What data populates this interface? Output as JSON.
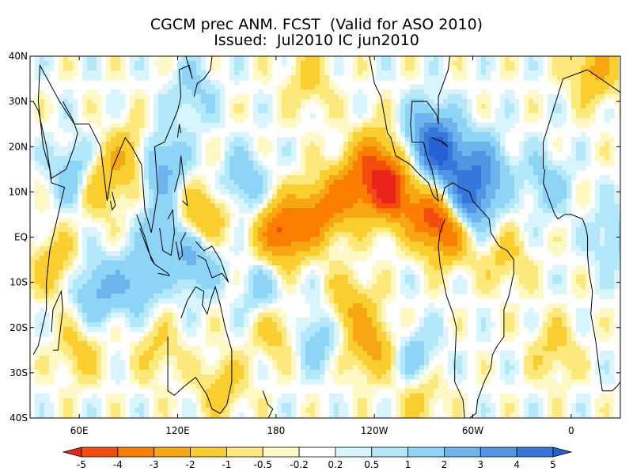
{
  "title": {
    "line1": "CGCM prec ANM. FCST  (Valid for ASO 2010)",
    "line2": "Issued:  Jul2010 IC jun2010"
  },
  "chart_data": {
    "type": "heatmap",
    "variable": "precipitation anomaly forecast",
    "lon_range": [
      30,
      390
    ],
    "lat_range": [
      -40,
      40
    ],
    "y_ticks": [
      {
        "lat": 40,
        "label": "40N"
      },
      {
        "lat": 30,
        "label": "30N"
      },
      {
        "lat": 20,
        "label": "20N"
      },
      {
        "lat": 10,
        "label": "10N"
      },
      {
        "lat": 0,
        "label": "EQ"
      },
      {
        "lat": -10,
        "label": "10S"
      },
      {
        "lat": -20,
        "label": "20S"
      },
      {
        "lat": -30,
        "label": "30S"
      },
      {
        "lat": -40,
        "label": "40S"
      }
    ],
    "x_ticks": [
      {
        "lon": 60,
        "label": "60E"
      },
      {
        "lon": 120,
        "label": "120E"
      },
      {
        "lon": 180,
        "label": "180"
      },
      {
        "lon": 240,
        "label": "120W"
      },
      {
        "lon": 300,
        "label": "60W"
      },
      {
        "lon": 360,
        "label": "0"
      }
    ],
    "colorbar": {
      "levels": [
        "-5",
        "-4",
        "-3",
        "-2",
        "-1",
        "-0.5",
        "-0.2",
        "0.2",
        "0.5",
        "1",
        "2",
        "3",
        "4",
        "5"
      ],
      "colors": [
        "#e8241b",
        "#f34d0d",
        "#fb7e00",
        "#f7a711",
        "#fbce30",
        "#fde87c",
        "#fdf8c4",
        "#ffffff",
        "#d8f4fc",
        "#b2e8fa",
        "#8ed4f6",
        "#6bb4ee",
        "#4f95e2",
        "#3478dc",
        "#2760d4"
      ]
    },
    "anomalies": [
      {
        "lon": 183,
        "lat": 1,
        "val": -4.2
      },
      {
        "lon": 205,
        "lat": 5,
        "val": -3.2
      },
      {
        "lon": 225,
        "lat": 10,
        "val": -3.0
      },
      {
        "lon": 250,
        "lat": 10,
        "val": -4.6
      },
      {
        "lon": 240,
        "lat": 17,
        "val": -3.0
      },
      {
        "lon": 273,
        "lat": 5,
        "val": -3.2
      },
      {
        "lon": 287,
        "lat": 2,
        "val": -4.0
      },
      {
        "lon": 238,
        "lat": -24,
        "val": -2.4
      },
      {
        "lon": 225,
        "lat": -15,
        "val": -1.8
      },
      {
        "lon": 180,
        "lat": -20,
        "val": -1.6
      },
      {
        "lon": 200,
        "lat": 35,
        "val": -1.2
      },
      {
        "lon": 122,
        "lat": 3,
        "val": -2.6
      },
      {
        "lon": 140,
        "lat": 5,
        "val": -1.6
      },
      {
        "lon": 72,
        "lat": 12,
        "val": -2.2
      },
      {
        "lon": 92,
        "lat": 18,
        "val": -1.8
      },
      {
        "lon": 45,
        "lat": -6,
        "val": -1.6
      },
      {
        "lon": 60,
        "lat": -25,
        "val": -1.3
      },
      {
        "lon": 108,
        "lat": -25,
        "val": -1.1
      },
      {
        "lon": 147,
        "lat": -33,
        "val": -1.4
      },
      {
        "lon": 268,
        "lat": -35,
        "val": -1.4
      },
      {
        "lon": 350,
        "lat": -25,
        "val": -1.2
      },
      {
        "lon": 375,
        "lat": 37,
        "val": -2.2
      },
      {
        "lon": 320,
        "lat": -5,
        "val": -1.2
      },
      {
        "lon": 282,
        "lat": 18,
        "val": 4.2
      },
      {
        "lon": 296,
        "lat": 7,
        "val": 4.6
      },
      {
        "lon": 307,
        "lat": 15,
        "val": 3.0
      },
      {
        "lon": 272,
        "lat": 23,
        "val": 2.6
      },
      {
        "lon": 115,
        "lat": 2,
        "val": 3.4
      },
      {
        "lon": 130,
        "lat": -5,
        "val": 2.4
      },
      {
        "lon": 70,
        "lat": -12,
        "val": 2.2
      },
      {
        "lon": 95,
        "lat": -10,
        "val": 2.0
      },
      {
        "lon": 58,
        "lat": 14,
        "val": 2.0
      },
      {
        "lon": 110,
        "lat": 16,
        "val": 2.6
      },
      {
        "lon": 160,
        "lat": 12,
        "val": 1.8
      },
      {
        "lon": 205,
        "lat": -22,
        "val": 1.6
      },
      {
        "lon": 173,
        "lat": -12,
        "val": 1.5
      },
      {
        "lon": 130,
        "lat": 32,
        "val": 1.2
      },
      {
        "lon": 345,
        "lat": 12,
        "val": 1.4
      },
      {
        "lon": 385,
        "lat": 0,
        "val": 1.2
      },
      {
        "lon": 265,
        "lat": -27,
        "val": 1.6
      }
    ],
    "continents": [
      {
        "name": "africa",
        "points": [
          [
            343,
            15
          ],
          [
            343,
            21
          ],
          [
            349,
            28
          ],
          [
            355,
            35
          ],
          [
            370,
            37
          ],
          [
            390,
            32
          ]
        ]
      },
      {
        "name": "eurasia",
        "points": [
          [
            35,
            30
          ],
          [
            36,
            38
          ],
          [
            48,
            30
          ],
          [
            57,
            25
          ],
          [
            66,
            25
          ],
          [
            73,
            20
          ],
          [
            77,
            8
          ],
          [
            80,
            15
          ],
          [
            88,
            22
          ],
          [
            92,
            20
          ],
          [
            98,
            16
          ],
          [
            100,
            6
          ],
          [
            104,
            1
          ],
          [
            108,
            10
          ],
          [
            106,
            20
          ],
          [
            112,
            21
          ],
          [
            120,
            28
          ],
          [
            122,
            31
          ],
          [
            121,
            37
          ],
          [
            127,
            38
          ],
          [
            129,
            35
          ],
          [
            125,
            40
          ]
        ]
      },
      {
        "name": "arabia",
        "points": [
          [
            32,
            30
          ],
          [
            35,
            28
          ],
          [
            40,
            20
          ],
          [
            43,
            13
          ],
          [
            52,
            15
          ],
          [
            57,
            20
          ],
          [
            59,
            23
          ],
          [
            56,
            26
          ],
          [
            50,
            30
          ]
        ]
      },
      {
        "name": "india-sri",
        "points": [
          [
            80,
            10
          ],
          [
            82,
            7
          ],
          [
            80,
            6
          ],
          [
            79,
            8
          ]
        ]
      },
      {
        "name": "sumatra",
        "points": [
          [
            95,
            5
          ],
          [
            100,
            0
          ],
          [
            104,
            -5
          ],
          [
            106,
            -6
          ],
          [
            102,
            -3
          ],
          [
            97,
            2
          ]
        ]
      },
      {
        "name": "borneo",
        "points": [
          [
            109,
            2
          ],
          [
            111,
            -3
          ],
          [
            116,
            -4
          ],
          [
            118,
            1
          ],
          [
            117,
            6
          ],
          [
            114,
            4
          ]
        ]
      },
      {
        "name": "java",
        "points": [
          [
            106,
            -6
          ],
          [
            114,
            -8
          ],
          [
            115,
            -8.5
          ],
          [
            108,
            -8
          ]
        ]
      },
      {
        "name": "sulawesi",
        "points": [
          [
            119,
            -1
          ],
          [
            121,
            -5
          ],
          [
            123,
            -4
          ],
          [
            122,
            -1
          ],
          [
            125,
            1
          ]
        ]
      },
      {
        "name": "philippines",
        "points": [
          [
            118,
            10
          ],
          [
            121,
            14
          ],
          [
            122,
            18
          ],
          [
            124,
            12
          ],
          [
            126,
            7
          ],
          [
            123,
            8
          ]
        ]
      },
      {
        "name": "taiwan",
        "points": [
          [
            120,
            22
          ],
          [
            121,
            25
          ],
          [
            122,
            23
          ]
        ]
      },
      {
        "name": "japan",
        "points": [
          [
            130,
            31
          ],
          [
            132,
            34
          ],
          [
            136,
            35
          ],
          [
            140,
            37
          ],
          [
            141,
            40
          ]
        ]
      },
      {
        "name": "new-guinea",
        "points": [
          [
            131,
            -1
          ],
          [
            136,
            -3
          ],
          [
            141,
            -2
          ],
          [
            146,
            -5
          ],
          [
            151,
            -10
          ],
          [
            147,
            -8
          ],
          [
            141,
            -9
          ],
          [
            137,
            -5
          ],
          [
            132,
            -4
          ]
        ]
      },
      {
        "name": "australia",
        "points": [
          [
            114,
            -22
          ],
          [
            114,
            -34
          ],
          [
            118,
            -35
          ],
          [
            124,
            -33
          ],
          [
            131,
            -31
          ],
          [
            138,
            -35
          ],
          [
            141,
            -38
          ],
          [
            146,
            -39
          ],
          [
            150,
            -37
          ],
          [
            153,
            -32
          ],
          [
            153,
            -25
          ],
          [
            149,
            -20
          ],
          [
            146,
            -15
          ],
          [
            143,
            -11
          ],
          [
            141,
            -13
          ],
          [
            138,
            -17
          ],
          [
            135,
            -15
          ],
          [
            136,
            -12
          ],
          [
            131,
            -11
          ],
          [
            126,
            -14
          ],
          [
            122,
            -18
          ]
        ]
      },
      {
        "name": "madagascar",
        "points": [
          [
            44,
            -25
          ],
          [
            47,
            -25
          ],
          [
            50,
            -16
          ],
          [
            49,
            -12
          ],
          [
            44,
            -16
          ],
          [
            43,
            -21
          ]
        ]
      },
      {
        "name": "se-africa",
        "points": [
          [
            32,
            -26
          ],
          [
            35,
            -24
          ],
          [
            40,
            -16
          ],
          [
            40,
            -10
          ],
          [
            42,
            -3
          ],
          [
            51,
            11
          ],
          [
            43,
            12
          ],
          [
            42,
            15
          ],
          [
            38,
            20
          ],
          [
            35,
            30
          ]
        ]
      },
      {
        "name": "new-zealand",
        "points": [
          [
            172,
            -34
          ],
          [
            175,
            -37
          ],
          [
            178,
            -38
          ],
          [
            174,
            -41
          ],
          [
            167,
            -46
          ]
        ]
      },
      {
        "name": "north-america",
        "points": [
          [
            237,
            40
          ],
          [
            240,
            34
          ],
          [
            244,
            31
          ],
          [
            248,
            23
          ],
          [
            250,
            22
          ],
          [
            253,
            18
          ],
          [
            262,
            16
          ],
          [
            267,
            14
          ],
          [
            273,
            12
          ],
          [
            276,
            9
          ],
          [
            279,
            8
          ],
          [
            278,
            10
          ],
          [
            275,
            15
          ],
          [
            272,
            18
          ],
          [
            270,
            21
          ],
          [
            267,
            21
          ],
          [
            263,
            21
          ],
          [
            262,
            25
          ],
          [
            263,
            30
          ],
          [
            268,
            30
          ],
          [
            272,
            30
          ],
          [
            278,
            27
          ],
          [
            279,
            25
          ],
          [
            279,
            31
          ],
          [
            283,
            35
          ],
          [
            285,
            37
          ],
          [
            286,
            40
          ]
        ]
      },
      {
        "name": "caribbean-cuba",
        "points": [
          [
            275,
            22
          ],
          [
            282,
            21
          ],
          [
            285,
            20
          ],
          [
            281,
            21
          ]
        ]
      },
      {
        "name": "south-america",
        "points": [
          [
            281,
            8
          ],
          [
            283,
            11
          ],
          [
            288,
            12
          ],
          [
            292,
            11
          ],
          [
            298,
            10
          ],
          [
            300,
            8
          ],
          [
            305,
            6
          ],
          [
            310,
            4
          ],
          [
            311,
            1
          ],
          [
            316,
            -2
          ],
          [
            321,
            -3
          ],
          [
            325,
            -5
          ],
          [
            325,
            -8
          ],
          [
            322,
            -13
          ],
          [
            319,
            -16
          ],
          [
            319,
            -22
          ],
          [
            315,
            -24
          ],
          [
            312,
            -26
          ],
          [
            311,
            -29
          ],
          [
            307,
            -32
          ],
          [
            303,
            -36
          ],
          [
            302,
            -39
          ],
          [
            298,
            -40
          ],
          [
            295,
            -40
          ],
          [
            294,
            -36
          ],
          [
            289,
            -32
          ],
          [
            289,
            -28
          ],
          [
            290,
            -20
          ],
          [
            288,
            -17
          ],
          [
            284,
            -13
          ],
          [
            280,
            -6
          ],
          [
            279,
            -2
          ],
          [
            280,
            1
          ],
          [
            283,
            4
          ]
        ]
      },
      {
        "name": "west-africa",
        "points": [
          [
            344,
            15
          ],
          [
            343,
            12
          ],
          [
            346,
            9
          ],
          [
            350,
            5
          ],
          [
            352,
            4
          ],
          [
            356,
            5
          ],
          [
            360,
            5
          ],
          [
            367,
            4
          ],
          [
            369,
            2
          ],
          [
            370,
            0
          ],
          [
            370,
            -4
          ],
          [
            371,
            -8
          ],
          [
            373,
            -12
          ],
          [
            372,
            -17
          ],
          [
            375,
            -23
          ],
          [
            377,
            -29
          ],
          [
            379,
            -34
          ],
          [
            382,
            -34
          ],
          [
            385,
            -34
          ],
          [
            388,
            -33
          ],
          [
            390,
            -32
          ]
        ]
      }
    ]
  },
  "colors": {
    "land_line": "#000000",
    "frame": "#000000"
  }
}
